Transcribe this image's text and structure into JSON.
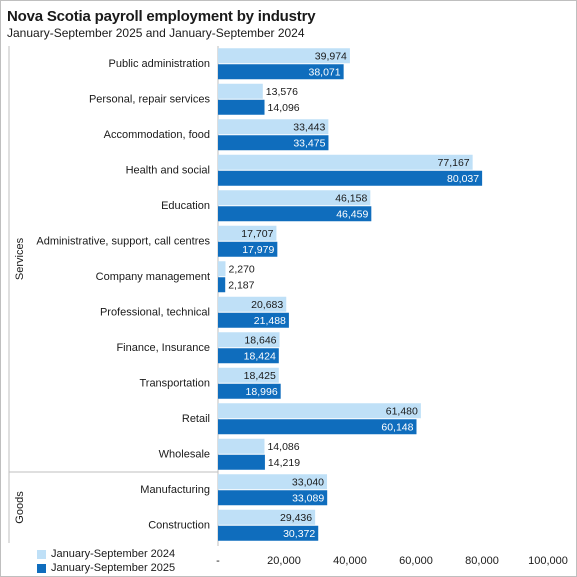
{
  "title": "Nova Scotia payroll employment by industry",
  "subtitle": "January-September 2025 and January-September 2024",
  "chart_data": {
    "type": "bar",
    "orientation": "horizontal",
    "categories": [
      "Public administration",
      "Personal, repair services",
      "Accommodation, food",
      "Health and social",
      "Education",
      "Administrative, support, call centres",
      "Company management",
      "Professional, technical",
      "Finance, Insurance",
      "Transportation",
      "Retail",
      "Wholesale",
      "Manufacturing",
      "Construction"
    ],
    "groups": [
      {
        "name": "Services",
        "count": 12
      },
      {
        "name": "Goods",
        "count": 2
      }
    ],
    "series": [
      {
        "name": "January-September 2024",
        "color": "#bfe0f7",
        "values": [
          39974,
          13576,
          33443,
          77167,
          46158,
          17707,
          2270,
          20683,
          18646,
          18425,
          61480,
          14086,
          33040,
          29436
        ],
        "labels": [
          "39,974",
          "13,576",
          "33,443",
          "77,167",
          "46,158",
          "17,707",
          "2,270",
          "20,683",
          "18,646",
          "18,425",
          "61,480",
          "14,086",
          "33,040",
          "29,436"
        ]
      },
      {
        "name": "January-September 2025",
        "color": "#0f6dbd",
        "values": [
          38071,
          14096,
          33475,
          80037,
          46459,
          17979,
          2187,
          21488,
          18424,
          18996,
          60148,
          14219,
          33089,
          30372
        ],
        "labels": [
          "38,071",
          "14,096",
          "33,475",
          "80,037",
          "46,459",
          "17,979",
          "2,187",
          "21,488",
          "18,424",
          "18,996",
          "60,148",
          "14,219",
          "33,089",
          "30,372"
        ]
      }
    ],
    "xlim": [
      0,
      100000
    ],
    "xticks": [
      0,
      20000,
      40000,
      60000,
      80000,
      100000
    ],
    "xtick_labels": [
      "-",
      "20,000",
      "40,000",
      "60,000",
      "80,000",
      "100,000"
    ],
    "grid": false,
    "legend_position": "bottom-left"
  }
}
